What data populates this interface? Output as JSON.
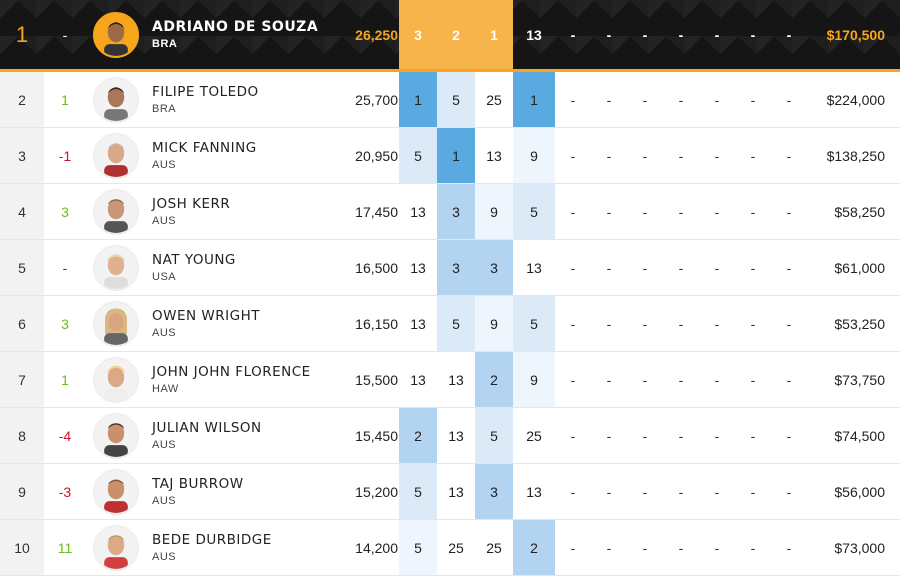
{
  "colors": {
    "accent": "#f7a61c",
    "leader_bg": "#151515",
    "best_result": "#5aa9e0",
    "up": "#6cbb1c",
    "down": "#d0102c"
  },
  "rows": [
    {
      "rank": "1",
      "move": "-",
      "name": "ADRIANO DE SOUZA",
      "country": "BRA",
      "points": "26,250",
      "e1": "3",
      "e2": "2",
      "e3": "1",
      "e4": "13",
      "d": [
        "-",
        "-",
        "-",
        "-",
        "-",
        "-",
        "-"
      ],
      "prize": "$170,500"
    },
    {
      "rank": "2",
      "move": "1",
      "name": "FILIPE TOLEDO",
      "country": "BRA",
      "points": "25,700",
      "e1": "1",
      "e2": "5",
      "e3": "25",
      "e4": "1",
      "d": [
        "-",
        "-",
        "-",
        "-",
        "-",
        "-",
        "-"
      ],
      "prize": "$224,000"
    },
    {
      "rank": "3",
      "move": "-1",
      "name": "MICK FANNING",
      "country": "AUS",
      "points": "20,950",
      "e1": "5",
      "e2": "1",
      "e3": "13",
      "e4": "9",
      "d": [
        "-",
        "-",
        "-",
        "-",
        "-",
        "-",
        "-"
      ],
      "prize": "$138,250"
    },
    {
      "rank": "4",
      "move": "3",
      "name": "JOSH KERR",
      "country": "AUS",
      "points": "17,450",
      "e1": "13",
      "e2": "3",
      "e3": "9",
      "e4": "5",
      "d": [
        "-",
        "-",
        "-",
        "-",
        "-",
        "-",
        "-"
      ],
      "prize": "$58,250"
    },
    {
      "rank": "5",
      "move": "-",
      "name": "NAT YOUNG",
      "country": "USA",
      "points": "16,500",
      "e1": "13",
      "e2": "3",
      "e3": "3",
      "e4": "13",
      "d": [
        "-",
        "-",
        "-",
        "-",
        "-",
        "-",
        "-"
      ],
      "prize": "$61,000"
    },
    {
      "rank": "6",
      "move": "3",
      "name": "OWEN WRIGHT",
      "country": "AUS",
      "points": "16,150",
      "e1": "13",
      "e2": "5",
      "e3": "9",
      "e4": "5",
      "d": [
        "-",
        "-",
        "-",
        "-",
        "-",
        "-",
        "-"
      ],
      "prize": "$53,250"
    },
    {
      "rank": "7",
      "move": "1",
      "name": "JOHN JOHN FLORENCE",
      "country": "HAW",
      "points": "15,500",
      "e1": "13",
      "e2": "13",
      "e3": "2",
      "e4": "9",
      "d": [
        "-",
        "-",
        "-",
        "-",
        "-",
        "-",
        "-"
      ],
      "prize": "$73,750"
    },
    {
      "rank": "8",
      "move": "-4",
      "name": "JULIAN WILSON",
      "country": "AUS",
      "points": "15,450",
      "e1": "2",
      "e2": "13",
      "e3": "5",
      "e4": "25",
      "d": [
        "-",
        "-",
        "-",
        "-",
        "-",
        "-",
        "-"
      ],
      "prize": "$74,500"
    },
    {
      "rank": "9",
      "move": "-3",
      "name": "TAJ BURROW",
      "country": "AUS",
      "points": "15,200",
      "e1": "5",
      "e2": "13",
      "e3": "3",
      "e4": "13",
      "d": [
        "-",
        "-",
        "-",
        "-",
        "-",
        "-",
        "-"
      ],
      "prize": "$56,000"
    },
    {
      "rank": "10",
      "move": "11",
      "name": "BEDE DURBIDGE",
      "country": "AUS",
      "points": "14,200",
      "e1": "5",
      "e2": "25",
      "e3": "25",
      "e4": "2",
      "d": [
        "-",
        "-",
        "-",
        "-",
        "-",
        "-",
        "-"
      ],
      "prize": "$73,000"
    }
  ]
}
